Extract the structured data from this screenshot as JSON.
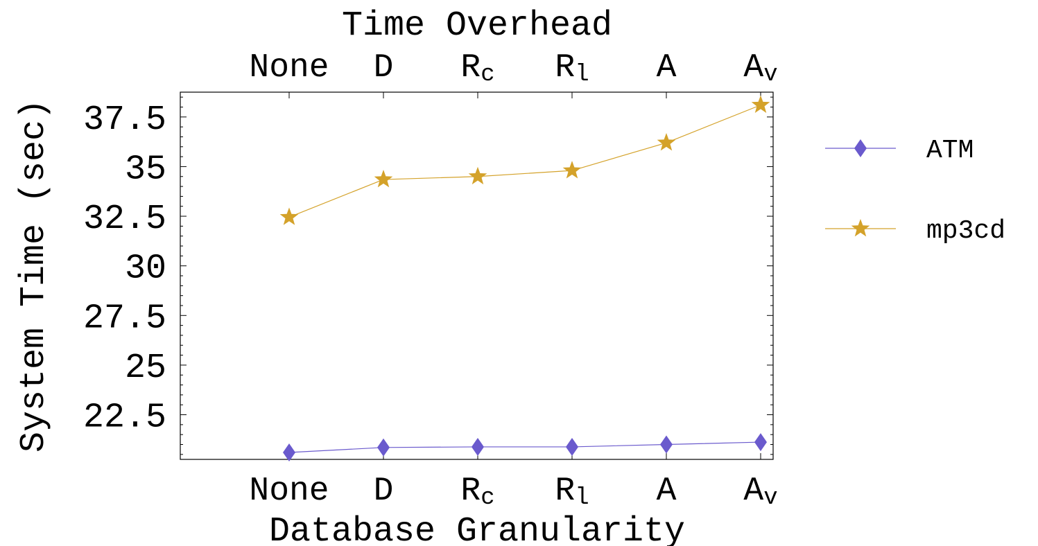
{
  "chart_data": {
    "type": "line",
    "title": "Time Overhead",
    "xlabel": "Database Granularity",
    "ylabel": "System Time (sec)",
    "categories": [
      {
        "base": "None",
        "sub": ""
      },
      {
        "base": "D",
        "sub": ""
      },
      {
        "base": "R",
        "sub": "c"
      },
      {
        "base": "R",
        "sub": "l"
      },
      {
        "base": "A",
        "sub": ""
      },
      {
        "base": "A",
        "sub": "v"
      }
    ],
    "yticks": [
      "22.5",
      "25",
      "27.5",
      "30",
      "32.5",
      "35",
      "37.5"
    ],
    "ylim": [
      20.25,
      38.75
    ],
    "grid": false,
    "legend_position": "right",
    "series": [
      {
        "name": "ATM",
        "marker": "diamond",
        "color": "#6a5acd",
        "values": [
          20.6,
          20.85,
          20.88,
          20.88,
          21.0,
          21.12
        ]
      },
      {
        "name": "mp3cd",
        "marker": "star",
        "color": "#d4a22a",
        "values": [
          32.45,
          34.35,
          34.5,
          34.8,
          36.2,
          38.1
        ]
      }
    ]
  }
}
